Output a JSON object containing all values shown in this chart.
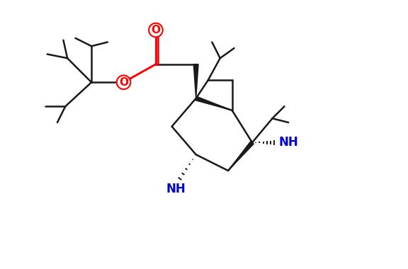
{
  "background_color": "#ffffff",
  "figsize": [
    5.76,
    3.8
  ],
  "dpi": 100,
  "bond_color": "#1a1a1a",
  "o_color": "#ff0000",
  "n_color": "#0000cc",
  "bond_lw": 1.8,
  "xlim": [
    0,
    10
  ],
  "ylim": [
    0,
    6.6
  ]
}
